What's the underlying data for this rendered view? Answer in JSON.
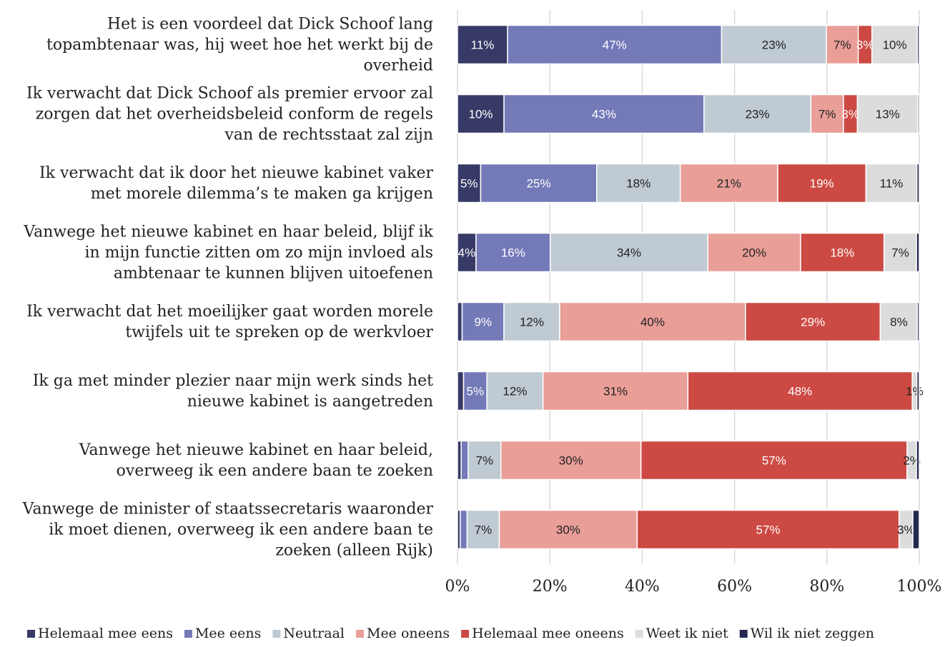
{
  "chart_data": {
    "type": "bar",
    "orientation": "horizontal",
    "stacked": "percent",
    "title": "",
    "xlabel": "",
    "ylabel": "",
    "xlim": [
      0,
      100
    ],
    "x_ticks": [
      "0%",
      "20%",
      "40%",
      "60%",
      "80%",
      "100%"
    ],
    "grid": "vertical",
    "legend_position": "bottom",
    "categories": [
      [
        "Het is een voordeel dat Dick Schoof lang",
        "topambtenaar was, hij weet hoe het werkt bij de",
        "overheid"
      ],
      [
        "Ik verwacht dat Dick Schoof als premier ervoor zal",
        "zorgen dat het overheidsbeleid conform de regels",
        "van de rechtsstaat zal zijn"
      ],
      [
        "Ik verwacht dat ik door het nieuwe kabinet vaker",
        "met morele dilemma’s te maken ga krijgen"
      ],
      [
        "Vanwege het nieuwe kabinet en haar beleid, blijf ik",
        "in mijn functie zitten om zo mijn invloed als",
        "ambtenaar te kunnen blijven uitoefenen"
      ],
      [
        "Ik verwacht dat het moeilijker gaat worden morele",
        "twijfels uit te spreken op de werkvloer"
      ],
      [
        "Ik ga met minder plezier naar mijn werk sinds het",
        "nieuwe kabinet is aangetreden"
      ],
      [
        "Vanwege het nieuwe kabinet en haar beleid,",
        "overweeg ik een andere baan te zoeken"
      ],
      [
        "Vanwege de minister of staatssecretaris waaronder",
        "ik moet dienen, overweeg ik een andere baan te",
        "zoeken (alleen Rijk)"
      ]
    ],
    "series": [
      {
        "name": "Helemaal mee eens",
        "color": "#373a66",
        "label_color": "#ffffff",
        "values": [
          11,
          10,
          5,
          4,
          1,
          1.3,
          0.8,
          0.6
        ],
        "labels": [
          "11%",
          "10%",
          "5%",
          "4%",
          "",
          "",
          "",
          ""
        ]
      },
      {
        "name": "Mee eens",
        "color": "#7479b8",
        "label_color": "#ffffff",
        "values": [
          47,
          43,
          25,
          16,
          9,
          5,
          1.5,
          1.5
        ],
        "labels": [
          "47%",
          "43%",
          "25%",
          "16%",
          "9%",
          "5%",
          "",
          ""
        ]
      },
      {
        "name": "Neutraal",
        "color": "#bfcad3",
        "label_color": "#222222",
        "values": [
          23,
          23,
          18,
          34,
          12,
          12,
          7,
          7
        ],
        "labels": [
          "23%",
          "23%",
          "18%",
          "34%",
          "12%",
          "12%",
          "7%",
          "7%"
        ]
      },
      {
        "name": "Mee oneens",
        "color": "#e99e98",
        "label_color": "#222222",
        "values": [
          7,
          7,
          21,
          20,
          40,
          31,
          30,
          30
        ],
        "labels": [
          "7%",
          "7%",
          "21%",
          "20%",
          "40%",
          "31%",
          "30%",
          "30%"
        ]
      },
      {
        "name": "Helemaal mee oneens",
        "color": "#cc4a43",
        "label_color": "#ffffff",
        "values": [
          3,
          3,
          19,
          18,
          29,
          48,
          57,
          57
        ],
        "labels": [
          "3%",
          "3%",
          "19%",
          "18%",
          "29%",
          "48%",
          "57%",
          "57%"
        ]
      },
      {
        "name": "Weet ik niet",
        "color": "#dcdcdc",
        "label_color": "#222222",
        "values": [
          10,
          13,
          11,
          7,
          8,
          1,
          2,
          3
        ],
        "labels": [
          "10%",
          "13%",
          "11%",
          "7%",
          "8%",
          "1%",
          "2%",
          "3%"
        ]
      },
      {
        "name": "Wil ik niet zeggen",
        "color": "#23294f",
        "label_color": "#222222",
        "values": [
          0.4,
          0.3,
          0.5,
          0.6,
          0.4,
          0.5,
          0.6,
          1.4
        ],
        "labels": [
          "",
          "",
          "",
          "",
          "",
          "",
          "",
          ""
        ]
      }
    ]
  }
}
